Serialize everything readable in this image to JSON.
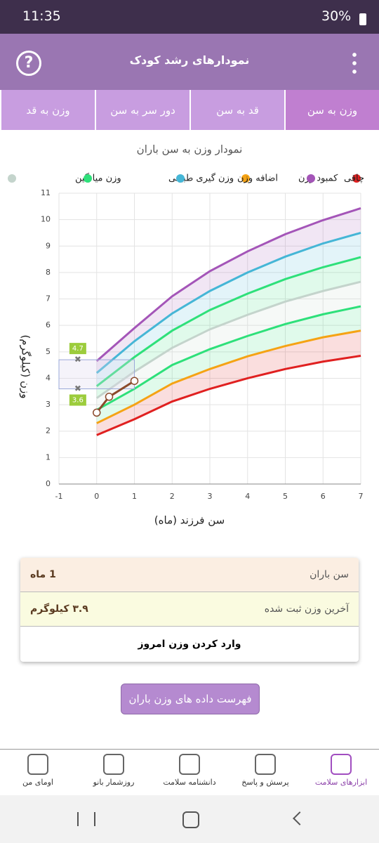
{
  "status_bar": {
    "time": "11:35",
    "battery": "30%"
  },
  "header": {
    "title": "نمودارهای رشد کودک"
  },
  "tabs": [
    "وزن به سن",
    "قد به سن",
    "دور سر به سن",
    "وزن به قد"
  ],
  "chart_data": {
    "type": "line",
    "title": "نمودار وزن به سن باران",
    "xlabel": "سن فرزند (ماه)",
    "ylabel": "وزن (کیلوگرم)",
    "x": [
      0,
      1,
      2,
      3,
      4,
      5,
      6,
      7
    ],
    "series": [
      {
        "color": "#e02020",
        "values": [
          1.85,
          2.45,
          3.12,
          3.6,
          4.0,
          4.35,
          4.63,
          4.85
        ]
      },
      {
        "name": "کمبود وزن",
        "color": "#f5a314",
        "values": [
          2.3,
          3.0,
          3.8,
          4.35,
          4.83,
          5.22,
          5.55,
          5.8
        ]
      },
      {
        "color": "#2ee07a",
        "values": [
          2.8,
          3.6,
          4.5,
          5.1,
          5.6,
          6.05,
          6.42,
          6.72
        ]
      },
      {
        "name": "وزن میانگین",
        "color": "#c4d4cc",
        "values": [
          3.25,
          4.25,
          5.15,
          5.85,
          6.4,
          6.9,
          7.3,
          7.65
        ]
      },
      {
        "name": "وزن گیری طبیعی",
        "color": "#2ee07a",
        "values": [
          3.7,
          4.8,
          5.8,
          6.58,
          7.2,
          7.75,
          8.2,
          8.58
        ]
      },
      {
        "name": "اضافه وزن",
        "color": "#45b6d6",
        "values": [
          4.2,
          5.4,
          6.45,
          7.3,
          8.0,
          8.6,
          9.1,
          9.5
        ]
      },
      {
        "name": "چاقی",
        "color": "#a455b8",
        "values": [
          4.65,
          5.9,
          7.1,
          8.05,
          8.8,
          9.45,
          9.98,
          10.43
        ]
      }
    ],
    "child": {
      "color": "#8b4a2b",
      "x": [
        0,
        0.33,
        1
      ],
      "values": [
        2.7,
        3.3,
        3.9
      ]
    },
    "range": {
      "x": -0.5,
      "low": 3.6,
      "high": 4.7
    },
    "xlim": [
      -1,
      7
    ],
    "xticks": [
      -1,
      0,
      1,
      2,
      3,
      4,
      5,
      6,
      7
    ],
    "ylim": [
      0,
      11
    ],
    "yticks": [
      0,
      1,
      2,
      3,
      4,
      5,
      6,
      7,
      8,
      9,
      10,
      11
    ],
    "grid": true
  },
  "info_card": {
    "rows": [
      [
        "سن باران",
        "1 ماه"
      ],
      [
        "آخرین وزن ثبت شده",
        "۳.۹ کیلوگرم"
      ]
    ],
    "action": "وارد کردن وزن امروز"
  },
  "list_button": "فهرست داده های وزن باران",
  "bottom_nav": [
    "ابزارهای سلامت",
    "پرسش و پاسخ",
    "دانشنامه سلامت",
    "روزشمار بانو",
    "اومای من"
  ]
}
